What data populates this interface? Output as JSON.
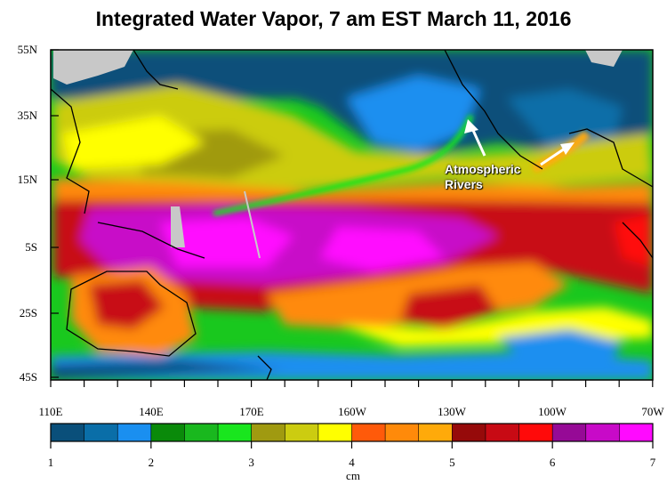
{
  "title": "Integrated Water Vapor, 7 am EST March 11, 2016",
  "annotation": {
    "line1": "Atmospheric",
    "line2": "Rivers"
  },
  "lat_labels": [
    "55N",
    "35N",
    "15N",
    "5S",
    "25S",
    "45S"
  ],
  "lon_labels": [
    "110E",
    "140E",
    "170E",
    "160W",
    "130W",
    "100W",
    "70W"
  ],
  "colorbar": {
    "tick_labels": [
      "1",
      "2",
      "3",
      "4",
      "5",
      "6",
      "7"
    ],
    "unit": "cm",
    "colors": [
      "#0a4f7a",
      "#0a6ea8",
      "#1a8ff0",
      "#0a8a0a",
      "#19b81e",
      "#19e61e",
      "#a09a10",
      "#cccc10",
      "#ffff00",
      "#ff5a0a",
      "#ff8a0a",
      "#ffaa0a",
      "#960a0a",
      "#c80a14",
      "#ff0a0a",
      "#960a96",
      "#c80ac8",
      "#ff0aff"
    ]
  },
  "colors": {
    "land": "#c8c8c8",
    "coast": "#000000"
  }
}
